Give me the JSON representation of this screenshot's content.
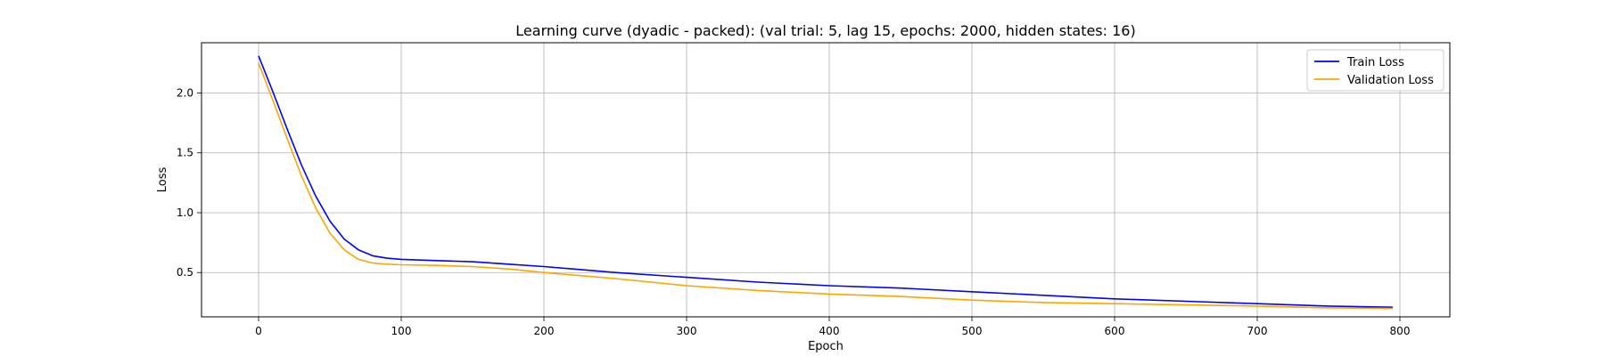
{
  "chart_data": {
    "type": "line",
    "title": "Learning curve (dyadic - packed): (val trial: 5, lag 15, epochs: 2000, hidden states: 16)",
    "xlabel": "Epoch",
    "ylabel": "Loss",
    "xlim": [
      -40,
      835
    ],
    "ylim": [
      0.13,
      2.42
    ],
    "xticks": [
      0,
      100,
      200,
      300,
      400,
      500,
      600,
      700,
      800
    ],
    "yticks": [
      0.5,
      1.0,
      1.5,
      2.0
    ],
    "ytick_labels": [
      "0.5",
      "1.0",
      "1.5",
      "2.0"
    ],
    "grid": true,
    "legend_position": "top-right",
    "series": [
      {
        "name": "Train Loss",
        "color": "#0000ff",
        "x": [
          0,
          10,
          20,
          30,
          40,
          50,
          60,
          70,
          80,
          90,
          100,
          125,
          150,
          175,
          200,
          250,
          300,
          350,
          400,
          450,
          500,
          550,
          600,
          650,
          700,
          750,
          795
        ],
        "y": [
          2.31,
          2.01,
          1.7,
          1.4,
          1.14,
          0.93,
          0.78,
          0.69,
          0.64,
          0.62,
          0.61,
          0.6,
          0.59,
          0.57,
          0.55,
          0.5,
          0.46,
          0.42,
          0.39,
          0.37,
          0.34,
          0.31,
          0.28,
          0.26,
          0.24,
          0.22,
          0.21
        ]
      },
      {
        "name": "Validation Loss",
        "color": "#ffa500",
        "x": [
          0,
          10,
          20,
          30,
          40,
          50,
          60,
          70,
          80,
          90,
          100,
          125,
          150,
          175,
          200,
          250,
          300,
          350,
          400,
          450,
          500,
          550,
          600,
          650,
          700,
          750,
          795
        ],
        "y": [
          2.25,
          1.94,
          1.62,
          1.31,
          1.04,
          0.83,
          0.69,
          0.61,
          0.58,
          0.57,
          0.565,
          0.56,
          0.55,
          0.53,
          0.5,
          0.45,
          0.39,
          0.35,
          0.32,
          0.3,
          0.27,
          0.25,
          0.24,
          0.23,
          0.22,
          0.205,
          0.2
        ]
      }
    ]
  }
}
